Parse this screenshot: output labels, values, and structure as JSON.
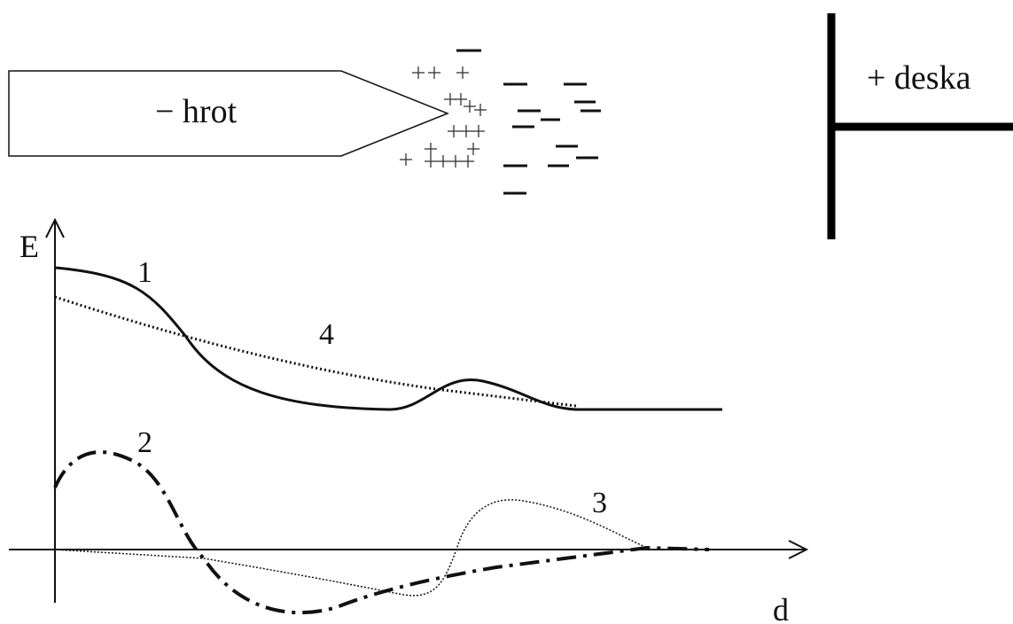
{
  "labels": {
    "tip": "− hrot",
    "plate": "+ deska",
    "y_axis": "E",
    "x_axis": "d"
  },
  "curves": [
    {
      "label": "1"
    },
    {
      "label": "2"
    },
    {
      "label": "3"
    },
    {
      "label": "4"
    }
  ]
}
